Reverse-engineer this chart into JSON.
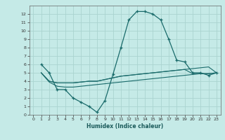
{
  "xlabel": "Humidex (Indice chaleur)",
  "background_color": "#c5eae7",
  "grid_color": "#aad4d0",
  "line_color": "#1a6b6b",
  "xlim": [
    -0.5,
    23.5
  ],
  "ylim": [
    0,
    13
  ],
  "xticks": [
    0,
    1,
    2,
    3,
    4,
    5,
    6,
    7,
    8,
    9,
    10,
    11,
    12,
    13,
    14,
    15,
    16,
    17,
    18,
    19,
    20,
    21,
    22,
    23
  ],
  "yticks": [
    0,
    1,
    2,
    3,
    4,
    5,
    6,
    7,
    8,
    9,
    10,
    11,
    12
  ],
  "line1_x": [
    1,
    2,
    3,
    4,
    5,
    6,
    7,
    8,
    9,
    10,
    11,
    12,
    13,
    14,
    15,
    16,
    17,
    18,
    19,
    20,
    21,
    22,
    23
  ],
  "line1_y": [
    6.0,
    5.0,
    3.0,
    3.0,
    2.0,
    1.5,
    1.0,
    0.3,
    1.7,
    4.8,
    8.0,
    11.3,
    12.3,
    12.3,
    12.0,
    11.3,
    9.0,
    6.5,
    6.3,
    5.0,
    5.0,
    4.7,
    5.0
  ],
  "line2_x": [
    1,
    2,
    3,
    4,
    5,
    6,
    7,
    8,
    9,
    10,
    11,
    12,
    13,
    14,
    15,
    16,
    17,
    18,
    19,
    20,
    21,
    22,
    23
  ],
  "line2_y": [
    5.0,
    4.0,
    3.8,
    3.8,
    3.8,
    3.9,
    4.0,
    4.0,
    4.2,
    4.4,
    4.6,
    4.7,
    4.8,
    4.9,
    5.0,
    5.1,
    5.2,
    5.3,
    5.4,
    5.5,
    5.6,
    5.7,
    5.0
  ],
  "line3_x": [
    1,
    2,
    3,
    4,
    5,
    6,
    7,
    8,
    9,
    10,
    11,
    12,
    13,
    14,
    15,
    16,
    17,
    18,
    19,
    20,
    21,
    22,
    23
  ],
  "line3_y": [
    5.0,
    4.0,
    3.8,
    3.8,
    3.8,
    3.9,
    4.0,
    4.0,
    4.2,
    4.4,
    4.6,
    4.7,
    4.8,
    4.9,
    5.0,
    5.1,
    5.2,
    5.3,
    5.4,
    4.9,
    4.9,
    4.9,
    5.0
  ],
  "line4_x": [
    1,
    2,
    3,
    4,
    5,
    6,
    7,
    8,
    9,
    10,
    11,
    12,
    13,
    14,
    15,
    16,
    17,
    18,
    19,
    20,
    21,
    22,
    23
  ],
  "line4_y": [
    5.0,
    3.9,
    3.4,
    3.3,
    3.3,
    3.4,
    3.5,
    3.6,
    3.7,
    3.8,
    3.9,
    4.0,
    4.1,
    4.2,
    4.3,
    4.4,
    4.5,
    4.6,
    4.7,
    4.8,
    4.9,
    4.9,
    5.0
  ]
}
